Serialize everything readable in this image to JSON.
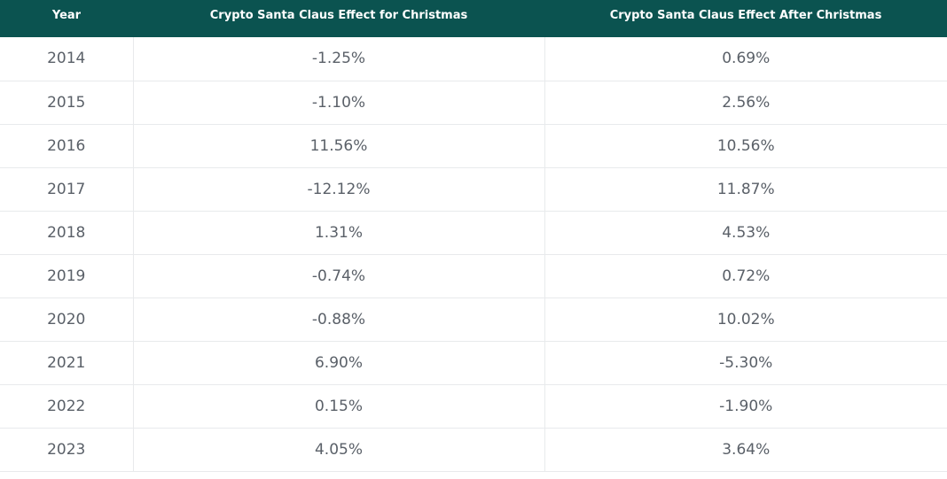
{
  "table": {
    "columns": [
      "Year",
      "Crypto Santa Claus Effect for Christmas",
      "Crypto Santa Claus Effect After Christmas"
    ],
    "rows": [
      [
        "2014",
        "-1.25%",
        "0.69%"
      ],
      [
        "2015",
        "-1.10%",
        "2.56%"
      ],
      [
        "2016",
        "11.56%",
        "10.56%"
      ],
      [
        "2017",
        "-12.12%",
        "11.87%"
      ],
      [
        "2018",
        "1.31%",
        "4.53%"
      ],
      [
        "2019",
        "-0.74%",
        "0.72%"
      ],
      [
        "2020",
        "-0.88%",
        "10.02%"
      ],
      [
        "2021",
        "6.90%",
        "-5.30%"
      ],
      [
        "2022",
        "0.15%",
        "-1.90%"
      ],
      [
        "2023",
        "4.05%",
        "3.64%"
      ]
    ]
  }
}
